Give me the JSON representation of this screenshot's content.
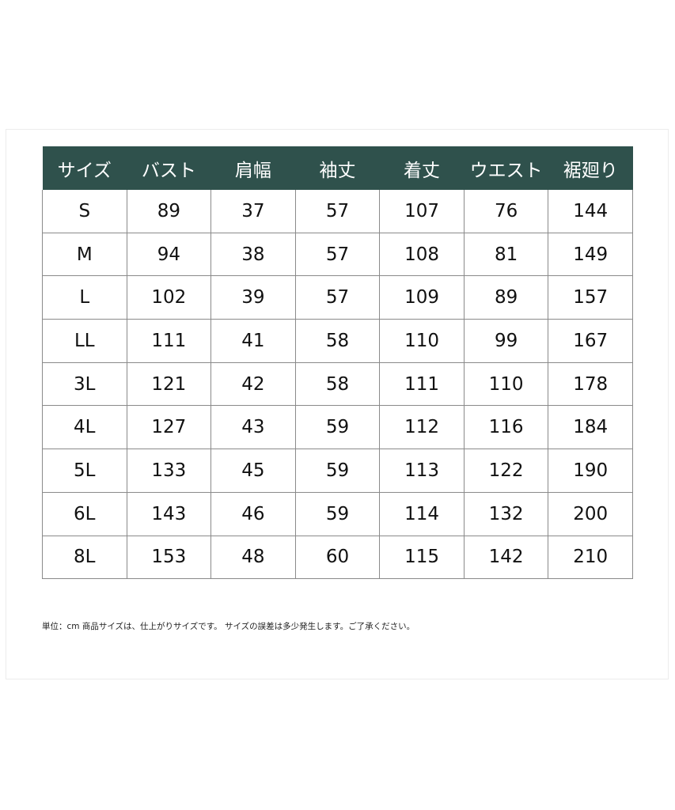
{
  "table": {
    "headers": [
      "サイズ",
      "バスト",
      "肩幅",
      "袖丈",
      "着丈",
      "ウエスト",
      "裾廻り"
    ],
    "rows": [
      [
        "S",
        "89",
        "37",
        "57",
        "107",
        "76",
        "144"
      ],
      [
        "M",
        "94",
        "38",
        "57",
        "108",
        "81",
        "149"
      ],
      [
        "L",
        "102",
        "39",
        "57",
        "109",
        "89",
        "157"
      ],
      [
        "LL",
        "111",
        "41",
        "58",
        "110",
        "99",
        "167"
      ],
      [
        "3L",
        "121",
        "42",
        "58",
        "111",
        "110",
        "178"
      ],
      [
        "4L",
        "127",
        "43",
        "59",
        "112",
        "116",
        "184"
      ],
      [
        "5L",
        "133",
        "45",
        "59",
        "113",
        "122",
        "190"
      ],
      [
        "6L",
        "143",
        "46",
        "59",
        "114",
        "132",
        "200"
      ],
      [
        "8L",
        "153",
        "48",
        "60",
        "115",
        "142",
        "210"
      ]
    ],
    "header_color": "#2f514c"
  },
  "note": "単位：cm 商品サイズは、仕上がりサイズです。 サイズの誤差は多少発生します。ご了承ください。"
}
